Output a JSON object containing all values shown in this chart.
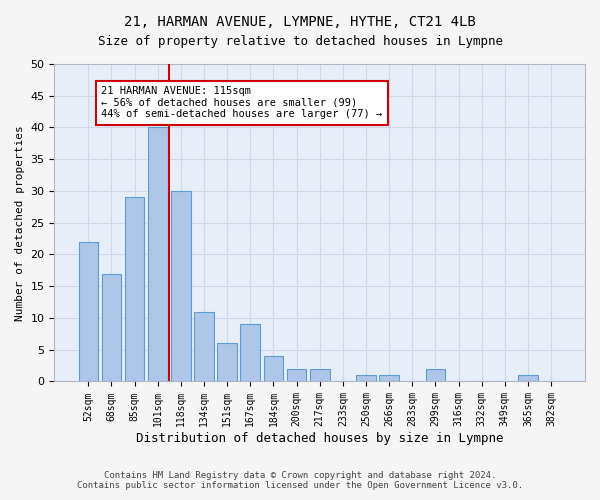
{
  "title1": "21, HARMAN AVENUE, LYMPNE, HYTHE, CT21 4LB",
  "title2": "Size of property relative to detached houses in Lympne",
  "xlabel": "Distribution of detached houses by size in Lympne",
  "ylabel": "Number of detached properties",
  "categories": [
    "52sqm",
    "68sqm",
    "85sqm",
    "101sqm",
    "118sqm",
    "134sqm",
    "151sqm",
    "167sqm",
    "184sqm",
    "200sqm",
    "217sqm",
    "233sqm",
    "250sqm",
    "266sqm",
    "283sqm",
    "299sqm",
    "316sqm",
    "332sqm",
    "349sqm",
    "365sqm",
    "382sqm"
  ],
  "values": [
    22,
    17,
    29,
    40,
    30,
    11,
    6,
    9,
    4,
    2,
    2,
    0,
    1,
    1,
    0,
    2,
    0,
    0,
    0,
    1,
    0
  ],
  "bar_color": "#aec6e8",
  "bar_edge_color": "#5a9fd4",
  "annotation_line1": "21 HARMAN AVENUE: 115sqm",
  "annotation_line2": "← 56% of detached houses are smaller (99)",
  "annotation_line3": "44% of semi-detached houses are larger (77) →",
  "annotation_box_color": "#ffffff",
  "annotation_box_edge_color": "#cc0000",
  "vline_color": "#cc0000",
  "vline_x_index": 4,
  "ylim": [
    0,
    50
  ],
  "yticks": [
    0,
    5,
    10,
    15,
    20,
    25,
    30,
    35,
    40,
    45,
    50
  ],
  "grid_color": "#d0d8e8",
  "bg_color": "#e8eef8",
  "footer1": "Contains HM Land Registry data © Crown copyright and database right 2024.",
  "footer2": "Contains public sector information licensed under the Open Government Licence v3.0."
}
